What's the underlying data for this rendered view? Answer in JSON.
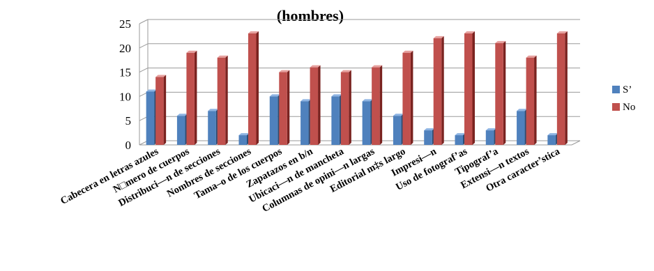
{
  "chart_data": {
    "type": "bar",
    "title": "(hombres)",
    "categories": [
      "Cabecera en letras azules",
      "N□mero de cuerpos",
      "Distribuci—n de secciones",
      "Nombres de secciones",
      "Tama–o de los cuerpos",
      "Zapatazos en b/n",
      "Ubicaci—n de mancheta",
      "Columnas de opini—n largas",
      "Editorial m‡s largo",
      "Impresi—n",
      "Uso de fotograf’as",
      "Tipograf’a",
      "Extensi—n textos",
      "Otra caracter’stica"
    ],
    "series": [
      {
        "name": "S’",
        "values": [
          11,
          6,
          7,
          2,
          10,
          9,
          10,
          9,
          6,
          3,
          2,
          3,
          7,
          2
        ]
      },
      {
        "name": "No",
        "values": [
          14,
          19,
          18,
          23,
          15,
          16,
          15,
          16,
          19,
          22,
          23,
          21,
          18,
          23
        ]
      }
    ],
    "ylim": [
      0,
      25
    ],
    "yticks": [
      0,
      5,
      10,
      15,
      20,
      25
    ],
    "grid": true,
    "legend_position": "right",
    "colors": {
      "series": [
        "#4f81bd",
        "#c0504d"
      ],
      "series_dark": [
        "#2c4d75",
        "#7a2320"
      ],
      "series_top": [
        "#8eb4e3",
        "#e6a09e"
      ],
      "grid": "#9a9a9a",
      "axis": "#9a9a9a"
    }
  }
}
